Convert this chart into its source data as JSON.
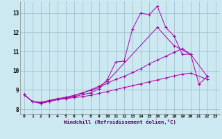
{
  "xlabel": "Windchill (Refroidissement éolien,°C)",
  "bg_color": "#cce8f0",
  "line_color": "#aa00aa",
  "grid_color": "#99bbcc",
  "xlim": [
    -0.5,
    23.5
  ],
  "ylim": [
    7.75,
    13.6
  ],
  "xticks": [
    0,
    1,
    2,
    3,
    4,
    5,
    6,
    7,
    8,
    9,
    10,
    11,
    12,
    13,
    14,
    15,
    16,
    17,
    18,
    19,
    20,
    21,
    22,
    23
  ],
  "yticks": [
    8,
    9,
    10,
    11,
    12,
    13
  ],
  "series": [
    {
      "x": [
        0,
        1,
        2,
        3,
        4,
        5,
        6,
        7,
        8,
        9,
        10,
        11,
        12,
        13,
        14,
        15,
        16,
        17,
        18,
        19,
        20,
        21,
        22
      ],
      "y": [
        8.75,
        8.4,
        8.3,
        8.4,
        8.5,
        8.55,
        8.65,
        8.75,
        8.85,
        9.05,
        9.55,
        10.45,
        10.5,
        12.15,
        13.0,
        12.9,
        13.35,
        12.25,
        11.8,
        10.85,
        10.85,
        9.3,
        9.7
      ]
    },
    {
      "x": [
        0,
        1,
        2,
        3,
        4,
        5,
        6,
        7,
        8,
        9,
        10,
        16,
        18,
        20
      ],
      "y": [
        8.75,
        8.4,
        8.3,
        8.4,
        8.5,
        8.6,
        8.7,
        8.85,
        9.0,
        9.2,
        9.45,
        12.25,
        11.3,
        10.85
      ]
    },
    {
      "x": [
        0,
        1,
        2,
        3,
        4,
        5,
        6,
        7,
        8,
        9,
        10,
        11,
        12,
        13,
        14,
        15,
        16,
        17,
        18,
        19,
        20,
        22
      ],
      "y": [
        8.75,
        8.4,
        8.35,
        8.45,
        8.55,
        8.62,
        8.72,
        8.85,
        8.98,
        9.12,
        9.35,
        9.55,
        9.7,
        9.9,
        10.1,
        10.35,
        10.55,
        10.75,
        10.95,
        11.15,
        10.85,
        9.7
      ]
    },
    {
      "x": [
        0,
        1,
        2,
        3,
        4,
        5,
        6,
        7,
        8,
        9,
        10,
        11,
        12,
        13,
        14,
        15,
        16,
        17,
        18,
        19,
        20,
        22
      ],
      "y": [
        8.75,
        8.4,
        8.35,
        8.45,
        8.5,
        8.55,
        8.6,
        8.65,
        8.72,
        8.82,
        8.92,
        9.02,
        9.12,
        9.22,
        9.32,
        9.42,
        9.52,
        9.62,
        9.72,
        9.82,
        9.87,
        9.55
      ]
    }
  ]
}
